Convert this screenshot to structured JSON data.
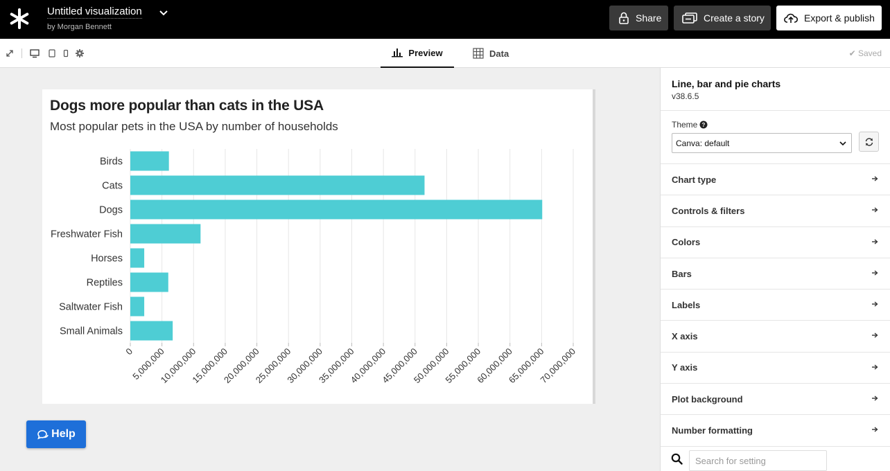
{
  "topbar": {
    "title": "Untitled visualization",
    "byline": "by Morgan Bennett",
    "share_label": "Share",
    "story_label": "Create a story",
    "export_label": "Export & publish"
  },
  "subbar": {
    "tabs": [
      {
        "label": "Preview",
        "icon": "bar-chart-icon",
        "active": true
      },
      {
        "label": "Data",
        "icon": "table-grid-icon",
        "active": false
      }
    ],
    "saved_label": "Saved"
  },
  "chart": {
    "title": "Dogs more popular than cats in the USA",
    "subtitle": "Most popular pets in the USA by number of households"
  },
  "chart_data": {
    "type": "bar",
    "orientation": "horizontal",
    "title": "Dogs more popular than cats in the USA",
    "subtitle": "Most popular pets in the USA by number of households",
    "categories": [
      "Birds",
      "Cats",
      "Dogs",
      "Freshwater Fish",
      "Horses",
      "Reptiles",
      "Saltwater Fish",
      "Small Animals"
    ],
    "values": [
      6100000,
      46500000,
      65100000,
      11100000,
      2200000,
      6000000,
      2200000,
      6700000
    ],
    "xlim": [
      0,
      70000000
    ],
    "x_ticks": [
      0,
      5000000,
      10000000,
      15000000,
      20000000,
      25000000,
      30000000,
      35000000,
      40000000,
      45000000,
      50000000,
      55000000,
      60000000,
      65000000,
      70000000
    ],
    "x_tick_labels": [
      "0",
      "5,000,000",
      "10,000,000",
      "15,000,000",
      "20,000,000",
      "25,000,000",
      "30,000,000",
      "35,000,000",
      "40,000,000",
      "45,000,000",
      "50,000,000",
      "55,000,000",
      "60,000,000",
      "65,000,000",
      "70,000,000"
    ],
    "bar_color": "#4ecdd4",
    "grid": true,
    "xlabel": "",
    "ylabel": ""
  },
  "help": {
    "label": "Help"
  },
  "panel": {
    "title": "Line, bar and pie charts",
    "version": "v38.6.5",
    "theme_label": "Theme",
    "theme_value": "Canva: default",
    "settings": [
      "Chart type",
      "Controls & filters",
      "Colors",
      "Bars",
      "Labels",
      "X axis",
      "Y axis",
      "Plot background",
      "Number formatting"
    ],
    "search_placeholder": "Search for setting"
  }
}
